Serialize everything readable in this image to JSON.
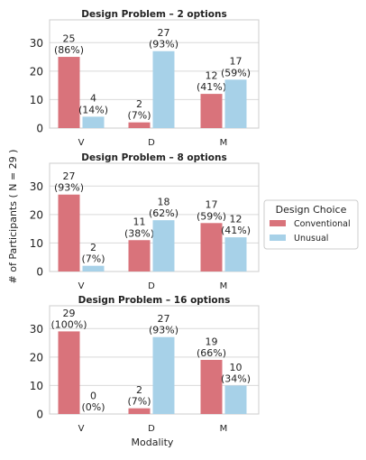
{
  "figure": {
    "shared_ylabel": "# of Participants ( N = 29 )",
    "shared_xlabel": "Modality"
  },
  "legend": {
    "title": "Design Choice",
    "placement": "right",
    "items": [
      {
        "label": "Conventional",
        "color": "#d9737b"
      },
      {
        "label": "Unusual",
        "color": "#a7d1e8"
      }
    ]
  },
  "colors": {
    "grid": "#d9d9d9",
    "spine": "#cccccc",
    "text": "#222222"
  },
  "chart_data": [
    {
      "type": "bar",
      "title": "Design Problem – 2 options",
      "categories": [
        "V",
        "D",
        "M"
      ],
      "ylim": [
        0,
        38
      ],
      "yticks": [
        0,
        10,
        20,
        30
      ],
      "grid": true,
      "series": [
        {
          "name": "Conventional",
          "values": [
            25,
            2,
            12
          ],
          "labels": [
            "25\n(86%)",
            "2\n(7%)",
            "12\n(41%)"
          ]
        },
        {
          "name": "Unusual",
          "values": [
            4,
            27,
            17
          ],
          "labels": [
            "4\n(14%)",
            "27\n(93%)",
            "17\n(59%)"
          ]
        }
      ]
    },
    {
      "type": "bar",
      "title": "Design Problem – 8 options",
      "categories": [
        "V",
        "D",
        "M"
      ],
      "ylim": [
        0,
        38
      ],
      "yticks": [
        0,
        10,
        20,
        30
      ],
      "grid": true,
      "series": [
        {
          "name": "Conventional",
          "values": [
            27,
            11,
            17
          ],
          "labels": [
            "27\n(93%)",
            "11\n(38%)",
            "17\n(59%)"
          ]
        },
        {
          "name": "Unusual",
          "values": [
            2,
            18,
            12
          ],
          "labels": [
            "2\n(7%)",
            "18\n(62%)",
            "12\n(41%)"
          ]
        }
      ]
    },
    {
      "type": "bar",
      "title": "Design Problem – 16 options",
      "categories": [
        "V",
        "D",
        "M"
      ],
      "ylim": [
        0,
        38
      ],
      "yticks": [
        0,
        10,
        20,
        30
      ],
      "grid": true,
      "series": [
        {
          "name": "Conventional",
          "values": [
            29,
            2,
            19
          ],
          "labels": [
            "29\n(100%)",
            "2\n(7%)",
            "19\n(66%)"
          ]
        },
        {
          "name": "Unusual",
          "values": [
            0,
            27,
            10
          ],
          "labels": [
            "0\n(0%)",
            "27\n(93%)",
            "10\n(34%)"
          ]
        }
      ]
    }
  ]
}
